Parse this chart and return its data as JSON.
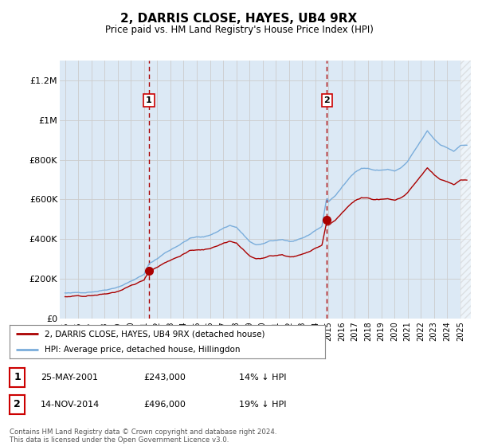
{
  "title": "2, DARRIS CLOSE, HAYES, UB4 9RX",
  "subtitle": "Price paid vs. HM Land Registry's House Price Index (HPI)",
  "ylim": [
    0,
    1300000
  ],
  "yticks": [
    0,
    200000,
    400000,
    600000,
    800000,
    1000000,
    1200000
  ],
  "ytick_labels": [
    "£0",
    "£200K",
    "£400K",
    "£600K",
    "£800K",
    "£1M",
    "£1.2M"
  ],
  "bg_color": "#dce9f5",
  "transaction1": {
    "date": "25-MAY-2001",
    "price": 243000,
    "label": "1",
    "pct": "14% ↓ HPI"
  },
  "transaction2": {
    "date": "14-NOV-2014",
    "price": 496000,
    "label": "2",
    "pct": "19% ↓ HPI"
  },
  "legend_line1": "2, DARRIS CLOSE, HAYES, UB4 9RX (detached house)",
  "legend_line2": "HPI: Average price, detached house, Hillingdon",
  "footer": "Contains HM Land Registry data © Crown copyright and database right 2024.\nThis data is licensed under the Open Government Licence v3.0.",
  "red_color": "#aa0000",
  "blue_color": "#7aaddb",
  "vline_x1": 2001.37,
  "vline_x2": 2014.87,
  "xmin": 1994.6,
  "xmax": 2025.8,
  "sale_x1": 2001.37,
  "sale_y1": 243000,
  "sale_x2": 2014.87,
  "sale_y2": 496000,
  "ratio1": 0.855,
  "ratio2": 0.808
}
